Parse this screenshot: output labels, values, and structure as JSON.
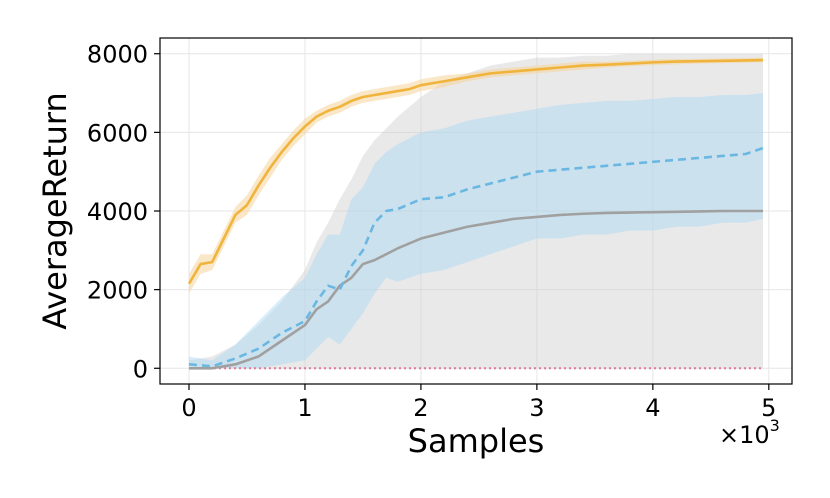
{
  "chart_data": {
    "type": "line",
    "xlabel": "Samples",
    "ylabel": "AverageReturn",
    "x_multiplier_label": "×10",
    "x_multiplier_exponent": "3",
    "xlim": [
      -0.25,
      5.2
    ],
    "ylim": [
      -400,
      8400
    ],
    "xticks": [
      0,
      1,
      2,
      3,
      4,
      5
    ],
    "yticks": [
      0,
      2000,
      4000,
      6000,
      8000
    ],
    "grid": true,
    "legend": "none",
    "series": [
      {
        "color": "#f0b43c",
        "style": "solid",
        "band_color": "#f5d49a",
        "band_opacity": 0.55,
        "x": [
          0,
          0.1,
          0.2,
          0.3,
          0.4,
          0.5,
          0.6,
          0.7,
          0.8,
          0.9,
          1.0,
          1.1,
          1.2,
          1.3,
          1.4,
          1.5,
          1.6,
          1.7,
          1.8,
          1.9,
          2.0,
          2.2,
          2.4,
          2.6,
          2.8,
          3.0,
          3.2,
          3.4,
          3.6,
          3.8,
          4.0,
          4.2,
          4.4,
          4.6,
          4.8,
          4.95
        ],
        "y": [
          2150,
          2650,
          2700,
          3300,
          3900,
          4150,
          4650,
          5100,
          5500,
          5850,
          6150,
          6400,
          6550,
          6650,
          6800,
          6900,
          6950,
          7000,
          7050,
          7100,
          7200,
          7300,
          7400,
          7500,
          7550,
          7600,
          7650,
          7700,
          7720,
          7750,
          7780,
          7800,
          7810,
          7820,
          7830,
          7840
        ],
        "lower": [
          1900,
          2400,
          2500,
          3100,
          3700,
          3900,
          4400,
          4850,
          5300,
          5650,
          5950,
          6250,
          6400,
          6500,
          6650,
          6750,
          6800,
          6850,
          6900,
          6950,
          7050,
          7150,
          7300,
          7400,
          7450,
          7500,
          7550,
          7600,
          7650,
          7680,
          7710,
          7730,
          7750,
          7760,
          7770,
          7780
        ],
        "upper": [
          2400,
          2900,
          2900,
          3500,
          4100,
          4400,
          4900,
          5350,
          5700,
          6050,
          6350,
          6550,
          6700,
          6800,
          6950,
          7050,
          7100,
          7150,
          7200,
          7250,
          7350,
          7450,
          7500,
          7600,
          7650,
          7700,
          7750,
          7800,
          7800,
          7820,
          7850,
          7870,
          7870,
          7880,
          7890,
          7900
        ]
      },
      {
        "color": "#6ab8e2",
        "style": "dashed",
        "band_color": "#a9d6f3",
        "band_opacity": 0.45,
        "x": [
          0,
          0.2,
          0.4,
          0.6,
          0.8,
          1.0,
          1.1,
          1.2,
          1.3,
          1.4,
          1.5,
          1.6,
          1.7,
          1.8,
          2.0,
          2.2,
          2.4,
          2.6,
          2.8,
          3.0,
          3.2,
          3.4,
          3.6,
          3.8,
          4.0,
          4.2,
          4.4,
          4.6,
          4.8,
          4.95
        ],
        "y": [
          100,
          50,
          250,
          500,
          900,
          1200,
          1700,
          2100,
          2000,
          2600,
          3000,
          3700,
          4000,
          4050,
          4300,
          4350,
          4550,
          4700,
          4850,
          5000,
          5050,
          5100,
          5150,
          5200,
          5250,
          5300,
          5350,
          5400,
          5450,
          5600
        ],
        "lower": [
          0,
          0,
          0,
          0,
          100,
          200,
          500,
          800,
          600,
          1000,
          1400,
          1900,
          2300,
          2200,
          2400,
          2500,
          2700,
          2900,
          3100,
          3300,
          3300,
          3400,
          3400,
          3500,
          3500,
          3600,
          3600,
          3700,
          3700,
          3800
        ],
        "upper": [
          300,
          200,
          600,
          1200,
          1800,
          2300,
          2900,
          3400,
          3400,
          4300,
          4600,
          5200,
          5500,
          5700,
          6000,
          6100,
          6300,
          6400,
          6500,
          6600,
          6700,
          6750,
          6800,
          6800,
          6850,
          6900,
          6900,
          6950,
          6950,
          7000
        ]
      },
      {
        "color": "#a0a0a0",
        "style": "solid",
        "band_color": "#cfcfcf",
        "band_opacity": 0.45,
        "x": [
          0,
          0.2,
          0.4,
          0.6,
          0.8,
          1.0,
          1.1,
          1.2,
          1.3,
          1.4,
          1.5,
          1.6,
          1.8,
          2.0,
          2.2,
          2.4,
          2.6,
          2.8,
          3.0,
          3.2,
          3.4,
          3.6,
          3.8,
          4.0,
          4.2,
          4.4,
          4.6,
          4.8,
          4.95
        ],
        "y": [
          0,
          0,
          100,
          300,
          700,
          1100,
          1500,
          1700,
          2100,
          2300,
          2650,
          2750,
          3050,
          3300,
          3450,
          3600,
          3700,
          3800,
          3850,
          3900,
          3930,
          3950,
          3960,
          3970,
          3980,
          3990,
          4000,
          4000,
          4000
        ],
        "lower": [
          0,
          0,
          0,
          0,
          0,
          0,
          0,
          0,
          0,
          0,
          0,
          0,
          0,
          0,
          0,
          0,
          0,
          0,
          0,
          0,
          0,
          0,
          0,
          0,
          0,
          0,
          0,
          0,
          0
        ],
        "upper": [
          200,
          300,
          600,
          1100,
          1700,
          2500,
          3200,
          3700,
          4300,
          4800,
          5400,
          5800,
          6400,
          6900,
          7300,
          7500,
          7700,
          7800,
          7900,
          7900,
          7950,
          7950,
          8000,
          8000,
          8000,
          8000,
          8000,
          8000,
          8000
        ]
      },
      {
        "color": "#e07a9a",
        "style": "dotted",
        "x": [
          0,
          4.95
        ],
        "y": [
          0,
          0
        ]
      }
    ]
  }
}
